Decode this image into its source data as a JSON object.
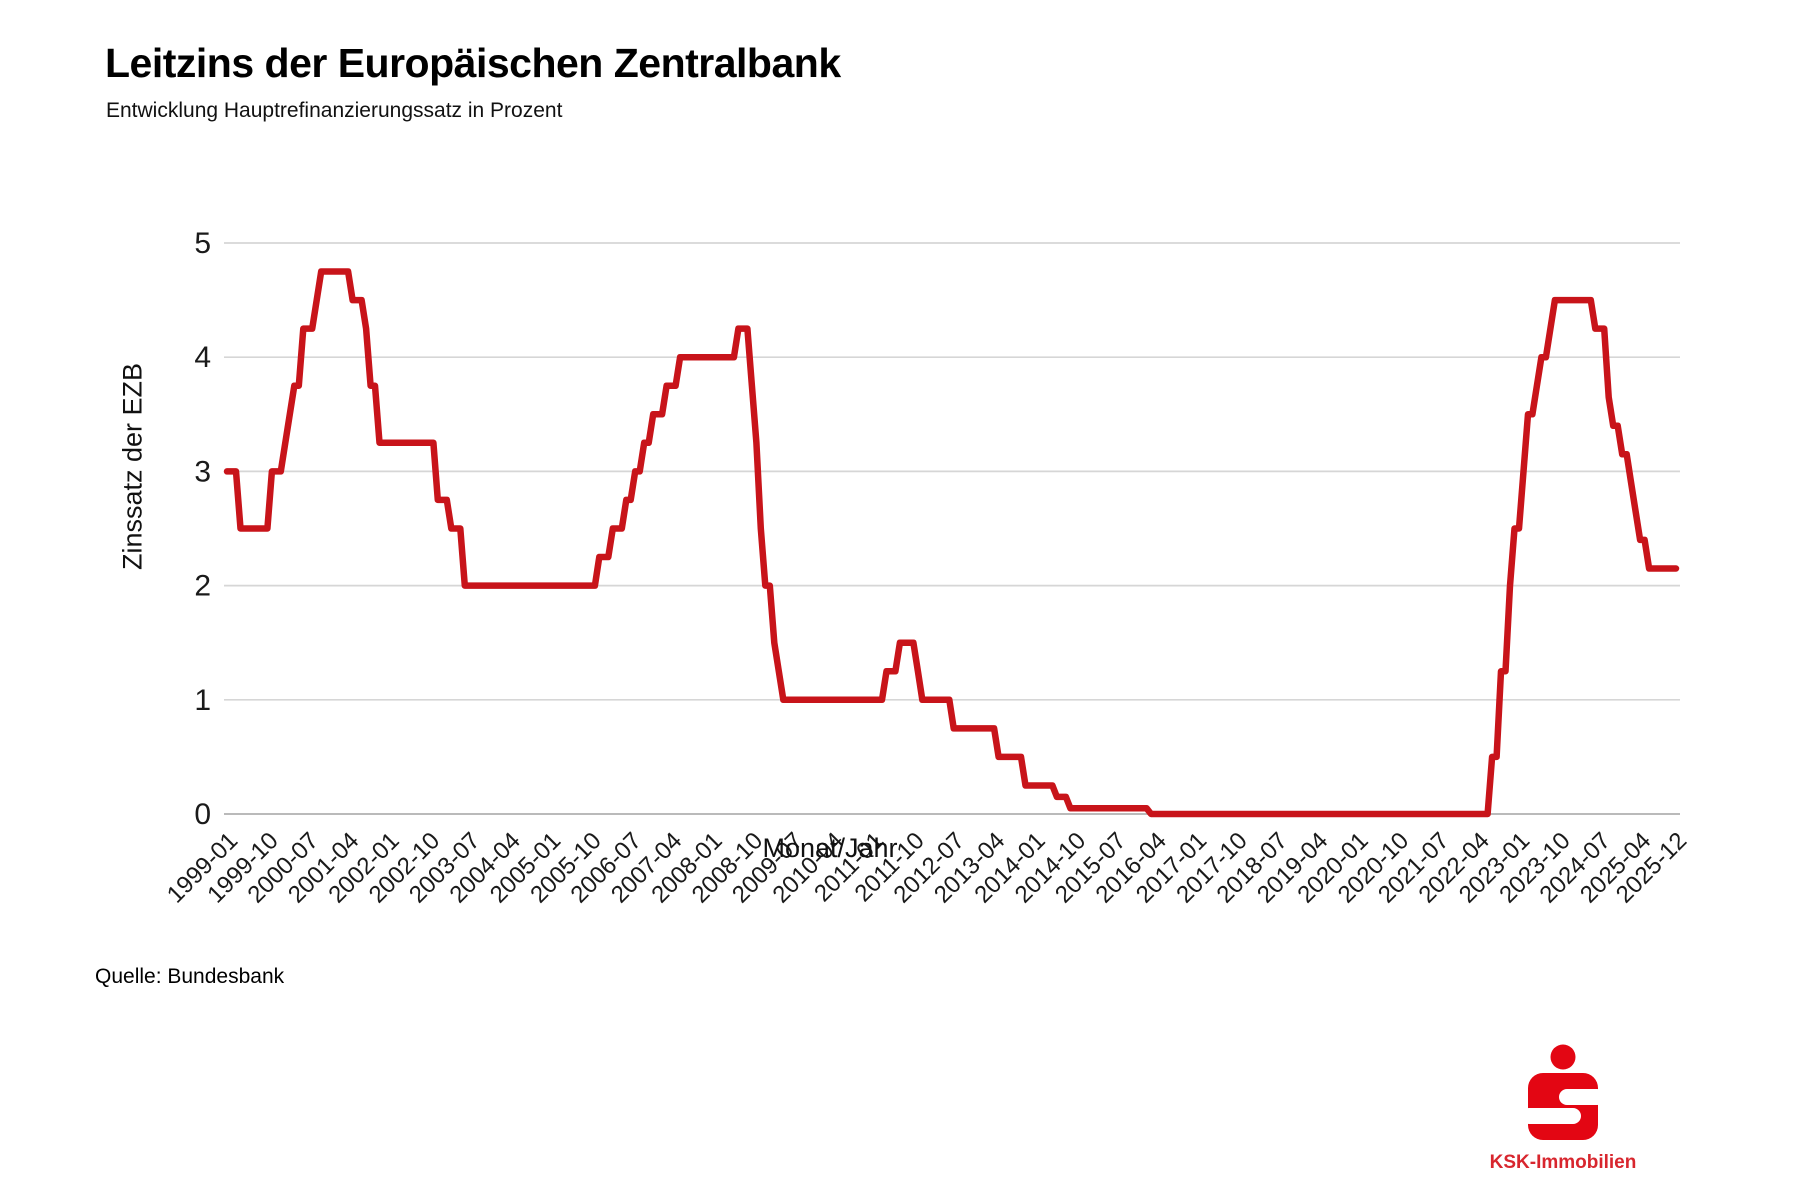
{
  "header": {
    "title": "Leitzins der Europäischen Zentralbank",
    "subtitle": "Entwicklung Hauptrefinanzierungssatz in Prozent"
  },
  "footer": {
    "source": "Quelle: Bundesbank"
  },
  "logo": {
    "brand": "KSK-Immobilien"
  },
  "colors": {
    "line": "#c8141a",
    "grid": "#d6d6d6",
    "zero_line": "#b0b0b0",
    "tick_text": "#1a1a1a",
    "logo_red": "#e30613",
    "brand_red": "#d8262e"
  },
  "chart_data": {
    "type": "line",
    "title": "Leitzins der Europäischen Zentralbank",
    "subtitle": "Entwicklung Hauptrefinanzierungssatz in Prozent",
    "xlabel": "Monat/Jahr",
    "ylabel": "Zinssatz der EZB",
    "ylim": [
      0,
      5
    ],
    "grid": true,
    "legend": "none",
    "y_ticks": [
      0,
      1,
      2,
      3,
      4,
      5
    ],
    "x_range": [
      "1999-01",
      "2025-12"
    ],
    "x_tick_labels": [
      "1999-01",
      "1999-10",
      "2000-07",
      "2001-04",
      "2002-01",
      "2002-10",
      "2003-07",
      "2004-04",
      "2005-01",
      "2005-10",
      "2006-07",
      "2007-04",
      "2008-01",
      "2008-10",
      "2009-07",
      "2010-04",
      "2011-01",
      "2011-10",
      "2012-07",
      "2013-04",
      "2014-01",
      "2014-10",
      "2015-07",
      "2016-04",
      "2017-01",
      "2017-10",
      "2018-07",
      "2019-04",
      "2020-01",
      "2020-10",
      "2021-07",
      "2022-04",
      "2023-01",
      "2023-10",
      "2024-07",
      "2025-04",
      "2025-12"
    ],
    "series_name": "Hauptrefinanzierungssatz in Prozent",
    "rate_changes": [
      [
        "1999-01",
        3.0
      ],
      [
        "1999-04",
        2.5
      ],
      [
        "1999-11",
        3.0
      ],
      [
        "2000-02",
        3.25
      ],
      [
        "2000-03",
        3.5
      ],
      [
        "2000-04",
        3.75
      ],
      [
        "2000-06",
        4.25
      ],
      [
        "2000-09",
        4.5
      ],
      [
        "2000-10",
        4.75
      ],
      [
        "2001-05",
        4.5
      ],
      [
        "2001-08",
        4.25
      ],
      [
        "2001-09",
        3.75
      ],
      [
        "2001-11",
        3.25
      ],
      [
        "2002-12",
        2.75
      ],
      [
        "2003-03",
        2.5
      ],
      [
        "2003-06",
        2.0
      ],
      [
        "2005-12",
        2.25
      ],
      [
        "2006-03",
        2.5
      ],
      [
        "2006-06",
        2.75
      ],
      [
        "2006-08",
        3.0
      ],
      [
        "2006-10",
        3.25
      ],
      [
        "2006-12",
        3.5
      ],
      [
        "2007-03",
        3.75
      ],
      [
        "2007-06",
        4.0
      ],
      [
        "2008-07",
        4.25
      ],
      [
        "2008-10",
        3.75
      ],
      [
        "2008-11",
        3.25
      ],
      [
        "2008-12",
        2.5
      ],
      [
        "2009-01",
        2.0
      ],
      [
        "2009-03",
        1.5
      ],
      [
        "2009-04",
        1.25
      ],
      [
        "2009-05",
        1.0
      ],
      [
        "2011-04",
        1.25
      ],
      [
        "2011-07",
        1.5
      ],
      [
        "2011-11",
        1.25
      ],
      [
        "2011-12",
        1.0
      ],
      [
        "2012-07",
        0.75
      ],
      [
        "2013-05",
        0.5
      ],
      [
        "2013-11",
        0.25
      ],
      [
        "2014-06",
        0.15
      ],
      [
        "2014-09",
        0.05
      ],
      [
        "2016-03",
        0.0
      ],
      [
        "2022-07",
        0.5
      ],
      [
        "2022-09",
        1.25
      ],
      [
        "2022-11",
        2.0
      ],
      [
        "2022-12",
        2.5
      ],
      [
        "2023-02",
        3.0
      ],
      [
        "2023-03",
        3.5
      ],
      [
        "2023-05",
        3.75
      ],
      [
        "2023-06",
        4.0
      ],
      [
        "2023-08",
        4.25
      ],
      [
        "2023-09",
        4.5
      ],
      [
        "2024-06",
        4.25
      ],
      [
        "2024-09",
        3.65
      ],
      [
        "2024-10",
        3.4
      ],
      [
        "2024-12",
        3.15
      ],
      [
        "2025-02",
        2.9
      ],
      [
        "2025-03",
        2.65
      ],
      [
        "2025-04",
        2.4
      ],
      [
        "2025-06",
        2.15
      ]
    ]
  }
}
